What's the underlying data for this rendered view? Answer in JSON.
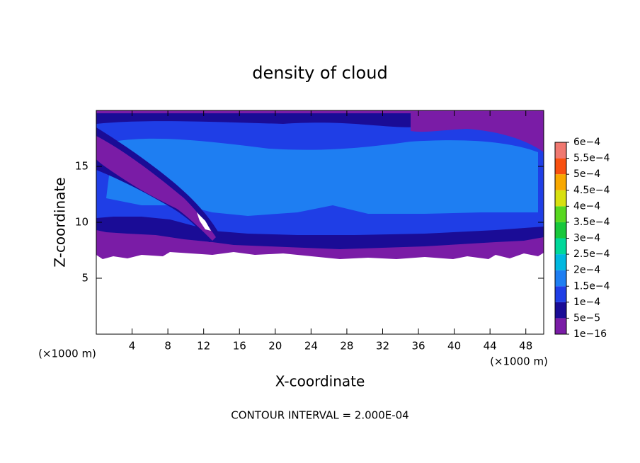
{
  "chart_data": {
    "type": "contour",
    "title": "density of cloud",
    "x_label": "X-coordinate",
    "y_label": "Z-coordinate",
    "x_unit": "(×1000 m)",
    "y_unit": "(×1000 m)",
    "footnote": "CONTOUR INTERVAL = 2.000E-04",
    "xlim": [
      0,
      50
    ],
    "xticks": [
      4,
      8,
      12,
      16,
      20,
      24,
      28,
      32,
      36,
      40,
      44,
      48
    ],
    "ylim": [
      0,
      20
    ],
    "yticks": [
      5,
      10,
      15
    ],
    "colorbar": {
      "ticks": [
        {
          "value": 1e-16,
          "label": "1e−16"
        },
        {
          "value": 5e-05,
          "label": "5e−5"
        },
        {
          "value": 0.0001,
          "label": "1e−4"
        },
        {
          "value": 0.00015,
          "label": "1.5e−4"
        },
        {
          "value": 0.0002,
          "label": "2e−4"
        },
        {
          "value": 0.00025,
          "label": "2.5e−4"
        },
        {
          "value": 0.0003,
          "label": "3e−4"
        },
        {
          "value": 0.00035,
          "label": "3.5e−4"
        },
        {
          "value": 0.0004,
          "label": "4e−4"
        },
        {
          "value": 0.00045,
          "label": "4.5e−4"
        },
        {
          "value": 0.0005,
          "label": "5e−4"
        },
        {
          "value": 0.00055,
          "label": "5.5e−4"
        },
        {
          "value": 0.0006,
          "label": "6e−4"
        }
      ],
      "colors": [
        "#7a1ca6",
        "#1a0c96",
        "#1f3ee6",
        "#1e7ef2",
        "#00b8e0",
        "#00d89a",
        "#18c83c",
        "#58d820",
        "#d8e010",
        "#f8a800",
        "#f85010",
        "#f07870"
      ]
    }
  }
}
